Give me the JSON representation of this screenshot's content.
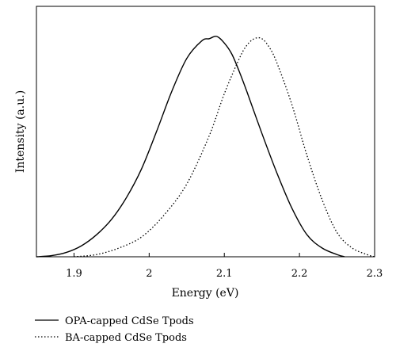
{
  "chart_data": {
    "type": "line",
    "title": "",
    "xlabel": "Energy (eV)",
    "ylabel": "Intensity (a.u.)",
    "xlim": [
      1.85,
      2.3
    ],
    "ylim": [
      0,
      1.0
    ],
    "x_ticks": [
      1.9,
      2.0,
      2.1,
      2.2,
      2.3
    ],
    "x_tick_labels": [
      "1.9",
      "2",
      "2.1",
      "2.2",
      "2.3"
    ],
    "y_ticks_shown": false,
    "grid": false,
    "legend_position": "below",
    "series": [
      {
        "name": "OPA-capped CdSe Tpods",
        "style": "solid",
        "color": "#000000",
        "x": [
          1.85,
          1.87,
          1.89,
          1.91,
          1.93,
          1.95,
          1.97,
          1.99,
          2.01,
          2.03,
          2.05,
          2.07,
          2.08,
          2.09,
          2.1,
          2.11,
          2.12,
          2.13,
          2.15,
          2.17,
          2.19,
          2.21,
          2.23,
          2.25,
          2.26
        ],
        "y": [
          0.0,
          0.005,
          0.02,
          0.05,
          0.1,
          0.17,
          0.27,
          0.4,
          0.57,
          0.75,
          0.9,
          0.98,
          0.99,
          1.0,
          0.97,
          0.92,
          0.84,
          0.75,
          0.56,
          0.38,
          0.22,
          0.1,
          0.04,
          0.01,
          0.0
        ]
      },
      {
        "name": "BA-capped CdSe Tpods",
        "style": "dotted",
        "color": "#000000",
        "x": [
          1.9,
          1.93,
          1.96,
          1.99,
          2.02,
          2.05,
          2.08,
          2.1,
          2.12,
          2.13,
          2.14,
          2.15,
          2.16,
          2.17,
          2.19,
          2.21,
          2.23,
          2.25,
          2.27,
          2.29,
          2.3
        ],
        "y": [
          0.0,
          0.01,
          0.04,
          0.09,
          0.19,
          0.33,
          0.55,
          0.74,
          0.9,
          0.96,
          0.99,
          0.99,
          0.95,
          0.88,
          0.69,
          0.46,
          0.26,
          0.11,
          0.04,
          0.01,
          0.0
        ]
      }
    ]
  }
}
